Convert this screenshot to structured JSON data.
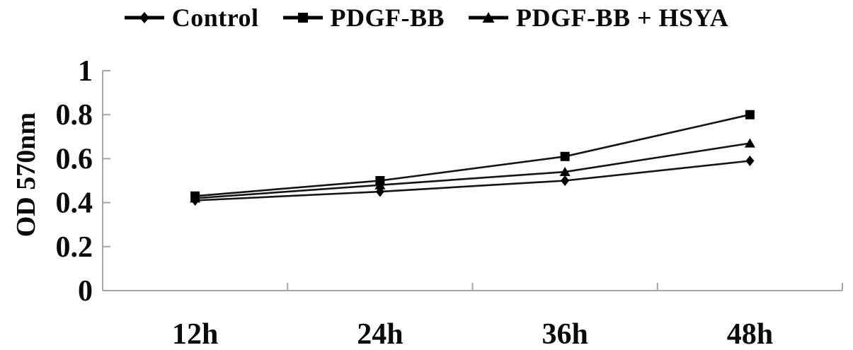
{
  "chart_data": {
    "type": "line",
    "title": "",
    "ylabel": "OD 570nm",
    "xlabel": "",
    "categories": [
      "12h",
      "24h",
      "36h",
      "48h"
    ],
    "ylim": [
      0,
      1
    ],
    "yticks": [
      0,
      0.2,
      0.4,
      0.6,
      0.8,
      1
    ],
    "ytick_labels": [
      "0",
      "0.2",
      "0.4",
      "0.6",
      "0.8",
      "1"
    ],
    "grid": false,
    "legend_position": "top-center",
    "series": [
      {
        "name": "Control",
        "marker": "diamond",
        "color": "#000000",
        "values": [
          0.41,
          0.45,
          0.5,
          0.59
        ]
      },
      {
        "name": "PDGF-BB",
        "marker": "square",
        "color": "#000000",
        "values": [
          0.43,
          0.5,
          0.61,
          0.8
        ]
      },
      {
        "name": "PDGF-BB + HSYA",
        "marker": "triangle",
        "color": "#000000",
        "values": [
          0.42,
          0.48,
          0.54,
          0.67
        ]
      }
    ],
    "colors": {
      "axis": "#a6a6a6",
      "line": "#151515",
      "marker": "#000000",
      "text": "#0a0a0a",
      "background": "#ffffff"
    }
  }
}
